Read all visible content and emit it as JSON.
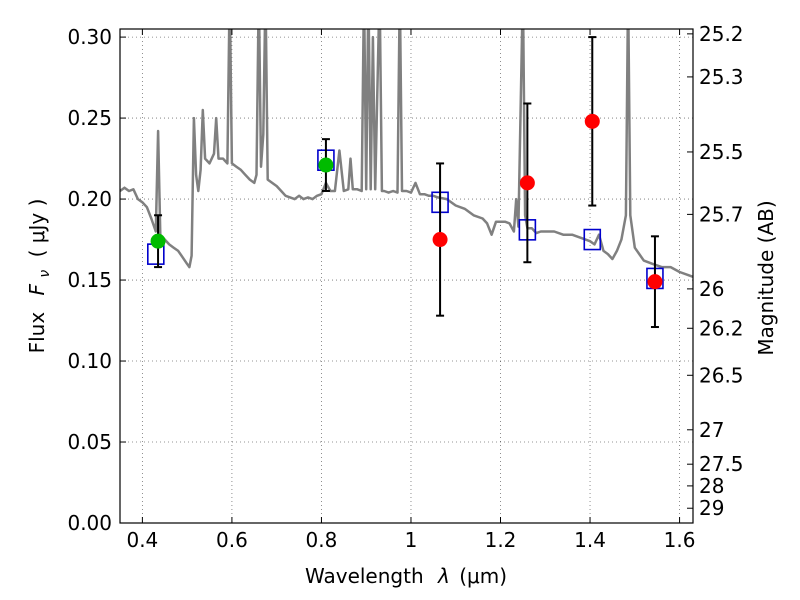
{
  "chart_data": {
    "type": "scatter",
    "xlabel_text": "Wavelength",
    "xlabel_symbol": "λ",
    "xlabel_unit": "(μm)",
    "ylabel_text": "Flux",
    "ylabel_symbol": "F",
    "ylabel_sub": "ν",
    "ylabel_unit": "( μJy )",
    "y2label": "Magnitude (AB)",
    "xlim": [
      0.35,
      1.63
    ],
    "ylim": [
      0.0,
      0.305
    ],
    "grid": true,
    "x_ticks": [
      {
        "value": 0.4,
        "label": "0.4"
      },
      {
        "value": 0.6,
        "label": "0.6"
      },
      {
        "value": 0.8,
        "label": "0.8"
      },
      {
        "value": 1.0,
        "label": "1"
      },
      {
        "value": 1.2,
        "label": "1.2"
      },
      {
        "value": 1.4,
        "label": "1.4"
      },
      {
        "value": 1.6,
        "label": "1.6"
      }
    ],
    "y_ticks": [
      {
        "value": 0.0,
        "label": "0.00"
      },
      {
        "value": 0.05,
        "label": "0.05"
      },
      {
        "value": 0.1,
        "label": "0.10"
      },
      {
        "value": 0.15,
        "label": "0.15"
      },
      {
        "value": 0.2,
        "label": "0.20"
      },
      {
        "value": 0.25,
        "label": "0.25"
      },
      {
        "value": 0.3,
        "label": "0.30"
      }
    ],
    "mag_ticks": [
      {
        "mag": 25.2,
        "label": "25.2"
      },
      {
        "mag": 25.3,
        "label": "25.3"
      },
      {
        "mag": 25.5,
        "label": "25.5"
      },
      {
        "mag": 25.7,
        "label": "25.7"
      },
      {
        "mag": 26.0,
        "label": "26"
      },
      {
        "mag": 26.2,
        "label": "26.2"
      },
      {
        "mag": 26.5,
        "label": "26.5"
      },
      {
        "mag": 27.0,
        "label": "27"
      },
      {
        "mag": 27.5,
        "label": "27.5"
      },
      {
        "mag": 28.0,
        "label": "28"
      },
      {
        "mag": 29.0,
        "label": "29"
      }
    ],
    "series": [
      {
        "kind": "model_line",
        "color": "#808080",
        "points": [
          [
            0.35,
            0.205
          ],
          [
            0.36,
            0.207
          ],
          [
            0.37,
            0.205
          ],
          [
            0.38,
            0.206
          ],
          [
            0.39,
            0.2
          ],
          [
            0.4,
            0.198
          ],
          [
            0.41,
            0.195
          ],
          [
            0.42,
            0.188
          ],
          [
            0.43,
            0.18
          ],
          [
            0.435,
            0.242
          ],
          [
            0.44,
            0.178
          ],
          [
            0.45,
            0.175
          ],
          [
            0.46,
            0.172
          ],
          [
            0.47,
            0.17
          ],
          [
            0.48,
            0.168
          ],
          [
            0.49,
            0.164
          ],
          [
            0.5,
            0.16
          ],
          [
            0.505,
            0.158
          ],
          [
            0.51,
            0.165
          ],
          [
            0.515,
            0.25
          ],
          [
            0.52,
            0.215
          ],
          [
            0.525,
            0.205
          ],
          [
            0.53,
            0.218
          ],
          [
            0.535,
            0.255
          ],
          [
            0.54,
            0.225
          ],
          [
            0.55,
            0.222
          ],
          [
            0.56,
            0.228
          ],
          [
            0.565,
            0.25
          ],
          [
            0.57,
            0.225
          ],
          [
            0.58,
            0.225
          ],
          [
            0.59,
            0.222
          ],
          [
            0.595,
            0.33
          ],
          [
            0.6,
            0.222
          ],
          [
            0.61,
            0.22
          ],
          [
            0.62,
            0.218
          ],
          [
            0.63,
            0.215
          ],
          [
            0.64,
            0.212
          ],
          [
            0.65,
            0.21
          ],
          [
            0.655,
            0.215
          ],
          [
            0.66,
            0.33
          ],
          [
            0.665,
            0.22
          ],
          [
            0.67,
            0.24
          ],
          [
            0.675,
            0.33
          ],
          [
            0.68,
            0.212
          ],
          [
            0.69,
            0.21
          ],
          [
            0.7,
            0.208
          ],
          [
            0.71,
            0.205
          ],
          [
            0.72,
            0.202
          ],
          [
            0.73,
            0.201
          ],
          [
            0.74,
            0.2
          ],
          [
            0.75,
            0.202
          ],
          [
            0.76,
            0.2
          ],
          [
            0.77,
            0.201
          ],
          [
            0.78,
            0.2
          ],
          [
            0.79,
            0.202
          ],
          [
            0.8,
            0.203
          ],
          [
            0.81,
            0.21
          ],
          [
            0.82,
            0.205
          ],
          [
            0.83,
            0.205
          ],
          [
            0.84,
            0.23
          ],
          [
            0.85,
            0.205
          ],
          [
            0.86,
            0.206
          ],
          [
            0.865,
            0.225
          ],
          [
            0.87,
            0.206
          ],
          [
            0.88,
            0.206
          ],
          [
            0.89,
            0.205
          ],
          [
            0.895,
            0.33
          ],
          [
            0.9,
            0.206
          ],
          [
            0.905,
            0.33
          ],
          [
            0.91,
            0.206
          ],
          [
            0.915,
            0.3
          ],
          [
            0.92,
            0.206
          ],
          [
            0.93,
            0.33
          ],
          [
            0.935,
            0.205
          ],
          [
            0.94,
            0.205
          ],
          [
            0.95,
            0.204
          ],
          [
            0.96,
            0.205
          ],
          [
            0.97,
            0.204
          ],
          [
            0.975,
            0.33
          ],
          [
            0.98,
            0.205
          ],
          [
            0.99,
            0.205
          ],
          [
            1.0,
            0.204
          ],
          [
            1.01,
            0.21
          ],
          [
            1.02,
            0.203
          ],
          [
            1.03,
            0.203
          ],
          [
            1.04,
            0.202
          ],
          [
            1.05,
            0.202
          ],
          [
            1.06,
            0.201
          ],
          [
            1.08,
            0.2
          ],
          [
            1.1,
            0.196
          ],
          [
            1.12,
            0.194
          ],
          [
            1.14,
            0.19
          ],
          [
            1.16,
            0.188
          ],
          [
            1.17,
            0.185
          ],
          [
            1.18,
            0.178
          ],
          [
            1.19,
            0.186
          ],
          [
            1.2,
            0.186
          ],
          [
            1.21,
            0.186
          ],
          [
            1.22,
            0.185
          ],
          [
            1.23,
            0.18
          ],
          [
            1.235,
            0.2
          ],
          [
            1.24,
            0.183
          ],
          [
            1.25,
            0.33
          ],
          [
            1.255,
            0.19
          ],
          [
            1.26,
            0.182
          ],
          [
            1.27,
            0.182
          ],
          [
            1.28,
            0.179
          ],
          [
            1.29,
            0.18
          ],
          [
            1.3,
            0.18
          ],
          [
            1.32,
            0.18
          ],
          [
            1.34,
            0.178
          ],
          [
            1.36,
            0.178
          ],
          [
            1.38,
            0.176
          ],
          [
            1.4,
            0.174
          ],
          [
            1.41,
            0.172
          ],
          [
            1.42,
            0.178
          ],
          [
            1.43,
            0.168
          ],
          [
            1.44,
            0.166
          ],
          [
            1.45,
            0.163
          ],
          [
            1.46,
            0.168
          ],
          [
            1.47,
            0.175
          ],
          [
            1.48,
            0.19
          ],
          [
            1.485,
            0.33
          ],
          [
            1.49,
            0.19
          ],
          [
            1.5,
            0.17
          ],
          [
            1.51,
            0.166
          ],
          [
            1.52,
            0.162
          ],
          [
            1.54,
            0.16
          ],
          [
            1.56,
            0.158
          ],
          [
            1.58,
            0.158
          ],
          [
            1.6,
            0.155
          ],
          [
            1.62,
            0.153
          ],
          [
            1.63,
            0.152
          ]
        ]
      },
      {
        "kind": "model_boxes",
        "color": "#0000cc",
        "points": [
          [
            0.43,
            0.166
          ],
          [
            0.81,
            0.224
          ],
          [
            1.065,
            0.198
          ],
          [
            1.26,
            0.181
          ],
          [
            1.405,
            0.175
          ],
          [
            1.545,
            0.151
          ]
        ]
      },
      {
        "kind": "observed",
        "color": "#00bb00",
        "points": [
          {
            "x": 0.435,
            "y": 0.174,
            "err": 0.016
          },
          {
            "x": 0.81,
            "y": 0.221,
            "err": 0.016
          }
        ]
      },
      {
        "kind": "observed",
        "color": "#ff0000",
        "points": [
          {
            "x": 1.065,
            "y": 0.175,
            "err": 0.047
          },
          {
            "x": 1.26,
            "y": 0.21,
            "err": 0.049
          },
          {
            "x": 1.405,
            "y": 0.248,
            "err": 0.052
          },
          {
            "x": 1.545,
            "y": 0.149,
            "err": 0.028
          }
        ]
      }
    ]
  }
}
